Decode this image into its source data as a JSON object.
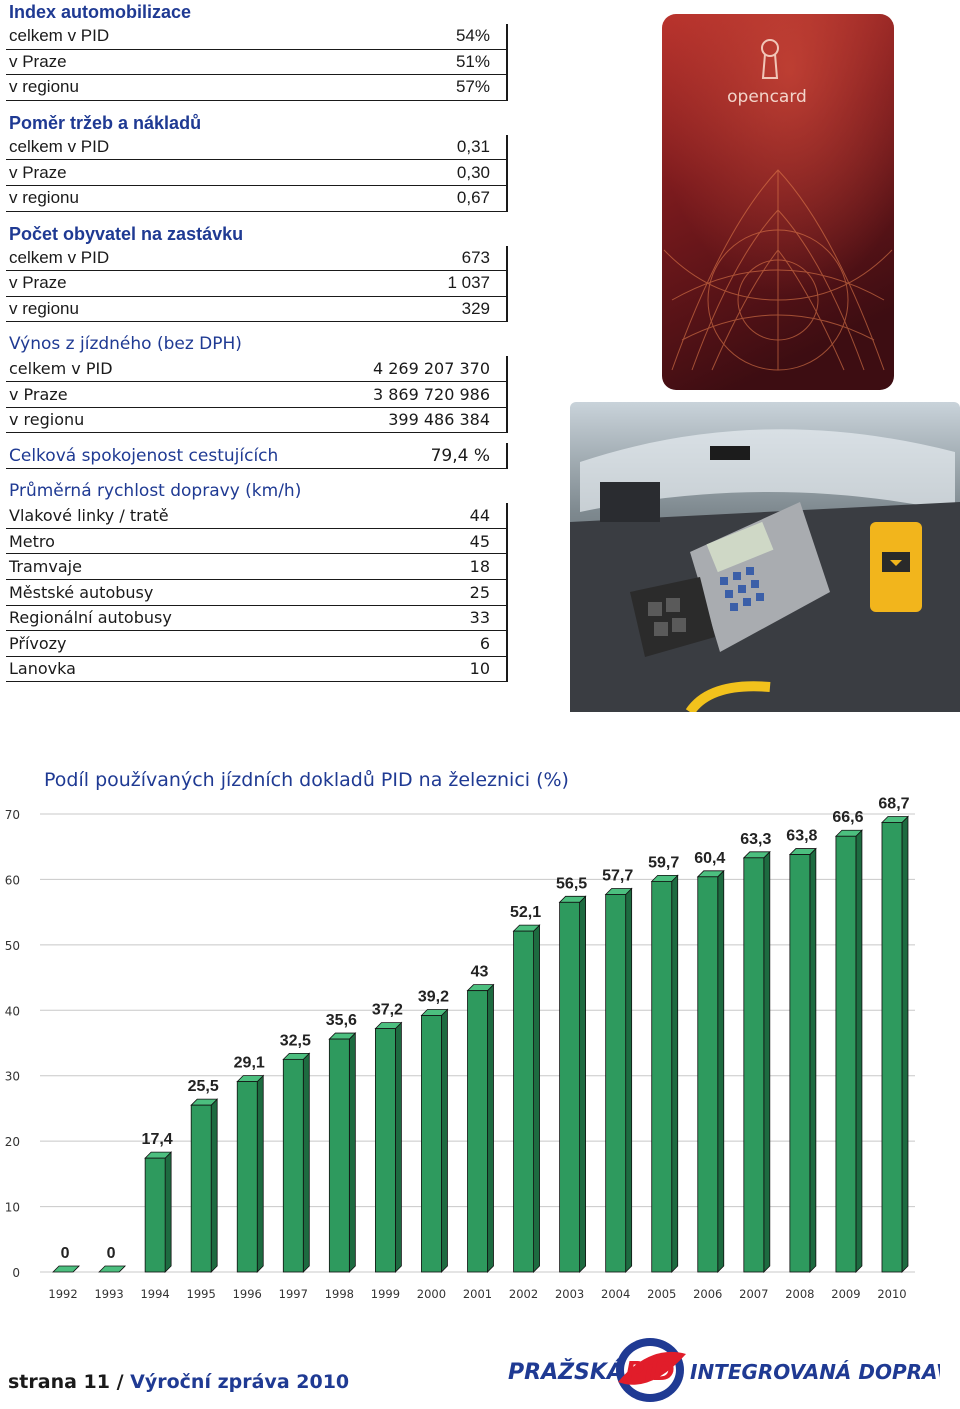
{
  "stats": {
    "automobilizace": {
      "title": "Index automobilizace",
      "rows": [
        {
          "label": "celkem v PID",
          "value": "54%"
        },
        {
          "label": "v Praze",
          "value": "51%"
        },
        {
          "label": "v regionu",
          "value": "57%"
        }
      ]
    },
    "pomer": {
      "title": "Poměr tržeb a nákladů",
      "rows": [
        {
          "label": "celkem v PID",
          "value": "0,31"
        },
        {
          "label": "v Praze",
          "value": "0,30"
        },
        {
          "label": "v regionu",
          "value": "0,67"
        }
      ]
    },
    "obyvatel": {
      "title": "Počet obyvatel na zastávku",
      "rows": [
        {
          "label": "celkem v PID",
          "value": "673"
        },
        {
          "label": "v Praze",
          "value": "1 037"
        },
        {
          "label": "v regionu",
          "value": "329"
        }
      ]
    },
    "vynos": {
      "title": "Výnos z jízdného (bez DPH)",
      "rows": [
        {
          "label": "celkem v PID",
          "value": "4 269 207 370"
        },
        {
          "label": "v Praze",
          "value": "3 869 720 986"
        },
        {
          "label": "v regionu",
          "value": "399 486 384"
        }
      ]
    },
    "spokojenost": {
      "title": "Celková spokojenost cestujících",
      "value": "79,4 %"
    },
    "rychlost": {
      "title": "Průměrná rychlost dopravy (km/h)",
      "rows": [
        {
          "label": "Vlakové linky / tratě",
          "value": "44"
        },
        {
          "label": "Metro",
          "value": "45"
        },
        {
          "label": "Tramvaje",
          "value": "18"
        },
        {
          "label": "Městské autobusy",
          "value": "25"
        },
        {
          "label": "Regionální autobusy",
          "value": "33"
        },
        {
          "label": "Přívozy",
          "value": "6"
        },
        {
          "label": "Lanovka",
          "value": "10"
        }
      ]
    }
  },
  "card": {
    "brand": "opencard"
  },
  "chart_data": {
    "type": "bar",
    "title": "Podíl používaných jízdních dokladů PID na železnici (%)",
    "xlabel": "",
    "ylabel": "",
    "ylim": [
      0,
      70
    ],
    "yticks": [
      0,
      10,
      20,
      30,
      40,
      50,
      60,
      70
    ],
    "categories": [
      "1992",
      "1993",
      "1994",
      "1995",
      "1996",
      "1997",
      "1998",
      "1999",
      "2000",
      "2001",
      "2002",
      "2003",
      "2004",
      "2005",
      "2006",
      "2007",
      "2008",
      "2009",
      "2010"
    ],
    "values": [
      0,
      0,
      17.4,
      25.5,
      29.1,
      32.5,
      35.6,
      37.2,
      39.2,
      43,
      52.1,
      56.5,
      57.7,
      59.7,
      60.4,
      63.3,
      63.8,
      66.6,
      68.7
    ],
    "labels": [
      "0",
      "0",
      "17,4",
      "25,5",
      "29,1",
      "32,5",
      "35,6",
      "37,2",
      "39,2",
      "43",
      "52,1",
      "56,5",
      "57,7",
      "59,7",
      "60,4",
      "63,3",
      "63,8",
      "66,6",
      "68,7"
    ],
    "bar_color": "#2e9a5e",
    "grid": true,
    "style": "3d"
  },
  "footer": {
    "page": "strana 11 / ",
    "report": "Výroční zpráva 2010",
    "logo_left": "PRAŽSKÁ",
    "logo_mark": "PiD",
    "logo_right": "INTEGROVANÁ DOPRAVA"
  }
}
